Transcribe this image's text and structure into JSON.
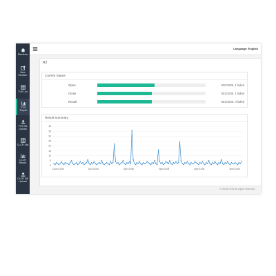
{
  "sidebar": {
    "items": [
      {
        "label": "Elections",
        "icon": "home-icon"
      },
      {
        "label": "New\nElection",
        "icon": "edit-icon"
      },
      {
        "label": "TVS List",
        "icon": "table-icon"
      },
      {
        "label": "TVS\nReport",
        "icon": "chart-icon"
      },
      {
        "label": "TVS DB\nUpload",
        "icon": "upload-icon"
      },
      {
        "label": "CLCR List",
        "icon": "table-icon"
      },
      {
        "label": "CLCR\nReport",
        "icon": "chart-icon"
      },
      {
        "label": "CLCR DB\nUpload",
        "icon": "upload-icon"
      }
    ]
  },
  "header": {
    "language": "Language: English"
  },
  "panel": {
    "title": "R2",
    "tools": [
      "^",
      "×"
    ]
  },
  "current_status": {
    "title": "Current Status",
    "rows": [
      {
        "label": "Open",
        "fraction": 0.53,
        "value": "530/1000, 1 failed"
      },
      {
        "label": "Close",
        "fraction": 0.501,
        "value": "501/1000, 1 failed"
      },
      {
        "label": "Result",
        "fraction": 0.501,
        "value": "501/1000, 0 failed"
      }
    ]
  },
  "result_summary": {
    "title": "Result Summary"
  },
  "chart_data": {
    "type": "line",
    "ylim": [
      0,
      40
    ],
    "yticks": [
      "0",
      "5",
      "10",
      "15",
      "20",
      "25",
      "30",
      "35",
      "40"
    ],
    "xticks": [
      "12pm 01/08",
      "1pm 01/08",
      "2pm 01/08",
      "3pm 01/08",
      "4pm 01/08",
      "5pm 01/08"
    ],
    "series": [
      {
        "values": [
          2,
          1,
          3,
          2,
          1,
          2,
          4,
          2,
          1,
          3,
          2,
          2,
          1,
          3,
          5,
          2,
          1,
          2,
          3,
          1,
          2,
          4,
          2,
          3,
          1,
          2,
          3,
          6,
          2,
          1,
          3,
          2,
          4,
          2,
          1,
          2,
          3,
          2,
          5,
          2,
          1,
          2,
          3,
          2,
          1,
          4,
          2,
          3,
          22,
          4,
          2,
          3,
          1,
          2,
          3,
          5,
          2,
          1,
          3,
          2,
          4,
          2,
          36,
          6,
          2,
          1,
          3,
          2,
          4,
          2,
          1,
          3,
          2,
          2,
          4,
          3,
          2,
          1,
          3,
          2,
          5,
          2,
          1,
          16,
          4,
          2,
          3,
          1,
          2,
          4,
          3,
          2,
          5,
          2,
          1,
          3,
          2,
          4,
          2,
          3,
          24,
          5,
          2,
          1,
          3,
          2,
          4,
          2,
          1,
          3,
          2,
          2,
          4,
          3,
          2,
          1,
          3,
          2,
          4,
          2,
          1,
          3,
          2,
          5,
          2,
          1,
          3,
          2,
          4,
          2,
          1,
          3,
          2,
          6,
          2,
          1,
          3,
          2,
          4,
          2,
          1,
          3,
          2,
          2,
          3,
          2,
          1,
          3,
          2,
          4
        ]
      }
    ]
  },
  "footer": {
    "text": "© 2018 CEW All rights reserved."
  }
}
